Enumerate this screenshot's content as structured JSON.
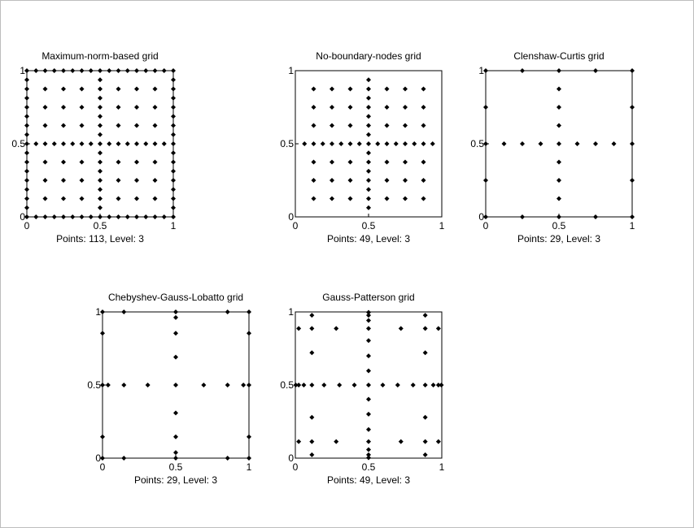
{
  "figure": {
    "background": "#ffffff",
    "frame_color": "#bdbdbd",
    "marker_color": "#000000"
  },
  "chart_data": [
    {
      "type": "scatter",
      "title": "Maximum-norm-based grid",
      "caption": "Points: 113, Level: 3",
      "xlim": [
        0,
        1
      ],
      "ylim": [
        0,
        1
      ],
      "x_ticks": [
        "0",
        "0.5",
        "1"
      ],
      "y_ticks": [
        "0",
        "0.5",
        "1"
      ],
      "grid": false,
      "marker": "diamond",
      "marker_color": "#000000",
      "point_rule": "union of every (a, b) where the pair of coordinate sets is ([0, 0.5, 1], all multiples of 1/16), (all multiples of 1/16, [0, 0.5, 1]), ([0.25, 0.75], multiples of 1/8), (multiples of 1/8, [0.25, 0.75]), ([0.125, 0.375, 0.625, 0.875], [0.125, 0.375, 0.625, 0.875]) — 113 points"
    },
    {
      "type": "scatter",
      "title": "No-boundary-nodes grid",
      "caption": "Points: 49, Level: 3",
      "xlim": [
        0,
        1
      ],
      "ylim": [
        0,
        1
      ],
      "x_ticks": [
        "0",
        "0.5",
        "1"
      ],
      "y_ticks": [
        "0",
        "0.5",
        "1"
      ],
      "grid": false,
      "marker": "diamond",
      "marker_color": "#000000",
      "point_rule": "x = 0.5 with y = 1/16 … 15/16, y = 0.5 with x = 1/16 … 15/16, x or y in [0.25, 0.75] paired with 1/8 … 7/8, and ([0.125, 0.375, 0.625, 0.875], [0.125, 0.375, 0.625, 0.875]) — 49 points"
    },
    {
      "type": "scatter",
      "title": "Clenshaw-Curtis grid",
      "caption": "Points: 29, Level: 3",
      "xlim": [
        0,
        1
      ],
      "ylim": [
        0,
        1
      ],
      "x_ticks": [
        "0",
        "0.5",
        "1"
      ],
      "y_ticks": [
        "0",
        "0.5",
        "1"
      ],
      "grid": false,
      "marker": "diamond",
      "marker_color": "#000000",
      "points": [
        [
          0,
          0
        ],
        [
          0,
          0.25
        ],
        [
          0,
          0.5
        ],
        [
          0,
          0.75
        ],
        [
          0,
          1
        ],
        [
          1,
          0
        ],
        [
          1,
          0.25
        ],
        [
          1,
          0.5
        ],
        [
          1,
          0.75
        ],
        [
          1,
          1
        ],
        [
          0.25,
          0
        ],
        [
          0.5,
          0
        ],
        [
          0.75,
          0
        ],
        [
          0.25,
          1
        ],
        [
          0.5,
          1
        ],
        [
          0.75,
          1
        ],
        [
          0.125,
          0.5
        ],
        [
          0.25,
          0.5
        ],
        [
          0.375,
          0.5
        ],
        [
          0.5,
          0.5
        ],
        [
          0.625,
          0.5
        ],
        [
          0.75,
          0.5
        ],
        [
          0.875,
          0.5
        ],
        [
          0.5,
          0.125
        ],
        [
          0.5,
          0.25
        ],
        [
          0.5,
          0.375
        ],
        [
          0.5,
          0.625
        ],
        [
          0.5,
          0.75
        ],
        [
          0.5,
          0.875
        ]
      ]
    },
    {
      "type": "scatter",
      "title": "Chebyshev-Gauss-Lobatto grid",
      "caption": "Points: 29, Level: 3",
      "xlim": [
        0,
        1
      ],
      "ylim": [
        0,
        1
      ],
      "x_ticks": [
        "0",
        "0.5",
        "1"
      ],
      "y_ticks": [
        "0",
        "0.5",
        "1"
      ],
      "grid": false,
      "marker": "diamond",
      "marker_color": "#000000",
      "points": [
        [
          0,
          0
        ],
        [
          0,
          0.146
        ],
        [
          0,
          0.5
        ],
        [
          0,
          0.854
        ],
        [
          0,
          1
        ],
        [
          1,
          0
        ],
        [
          1,
          0.146
        ],
        [
          1,
          0.5
        ],
        [
          1,
          0.854
        ],
        [
          1,
          1
        ],
        [
          0.146,
          0
        ],
        [
          0.5,
          0
        ],
        [
          0.854,
          0
        ],
        [
          0.146,
          1
        ],
        [
          0.5,
          1
        ],
        [
          0.854,
          1
        ],
        [
          0.038,
          0.5
        ],
        [
          0.146,
          0.5
        ],
        [
          0.309,
          0.5
        ],
        [
          0.5,
          0.5
        ],
        [
          0.691,
          0.5
        ],
        [
          0.854,
          0.5
        ],
        [
          0.962,
          0.5
        ],
        [
          0.5,
          0.038
        ],
        [
          0.5,
          0.146
        ],
        [
          0.5,
          0.309
        ],
        [
          0.5,
          0.691
        ],
        [
          0.5,
          0.854
        ],
        [
          0.5,
          0.962
        ]
      ]
    },
    {
      "type": "scatter",
      "title": "Gauss-Patterson grid",
      "caption": "Points: 49, Level: 3",
      "xlim": [
        0,
        1
      ],
      "ylim": [
        0,
        1
      ],
      "x_ticks": [
        "0",
        "0.5",
        "1"
      ],
      "y_ticks": [
        "0",
        "0.5",
        "1"
      ],
      "grid": false,
      "marker": "diamond",
      "marker_color": "#000000",
      "point_rule": "x = 0.5 with y at 15 Gauss-Patterson nodes (0.003, 0.023, 0.058, 0.113, 0.196, 0.301, 0.403, 0.5, 0.597, 0.699, 0.804, 0.887, 0.942, 0.977, 0.997), the same along y = 0.5, x or y in [0.113, 0.887] paired with (0.023, 0.113, 0.279, 0.5, 0.721, 0.887, 0.977), and ([0.113, 0.5, 0.887], [0.113, 0.5, 0.887]) — 49 points"
    }
  ]
}
